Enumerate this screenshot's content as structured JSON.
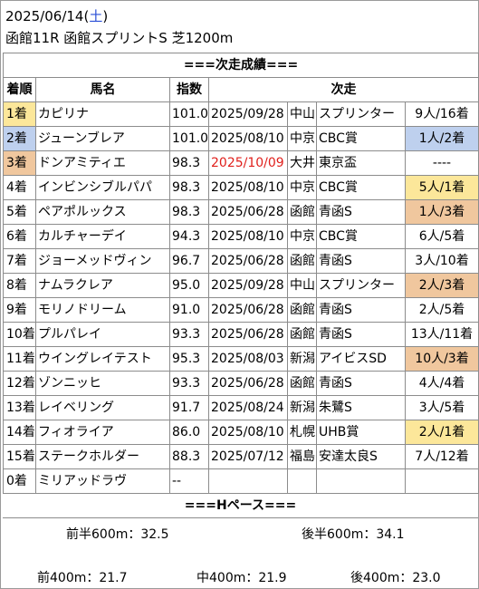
{
  "header": {
    "date": "2025/06/14",
    "weekday_open": "(",
    "weekday": "土",
    "weekday_close": ")",
    "race": "函館11R 函館スプリントS 芝1200m"
  },
  "section_next": "===次走成績===",
  "columns": {
    "rank": "着順",
    "horse": "馬名",
    "index": "指数",
    "next": "次走"
  },
  "rows": [
    {
      "rank": "1着",
      "horse": "カピリナ",
      "index": "101.0",
      "date": "2025/09/28",
      "venue": "中山",
      "race": "スプリンター",
      "result": "9人/16着"
    },
    {
      "rank": "2着",
      "horse": "ジューンブレア",
      "index": "101.0",
      "date": "2025/08/10",
      "venue": "中京",
      "race": "CBC賞",
      "result": "1人/2着"
    },
    {
      "rank": "3着",
      "horse": "ドンアミティエ",
      "index": "98.3",
      "date": "2025/10/09",
      "venue": "大井",
      "race": "東京盃",
      "result": "----"
    },
    {
      "rank": "4着",
      "horse": "インビンシブルパパ",
      "index": "98.3",
      "date": "2025/08/10",
      "venue": "中京",
      "race": "CBC賞",
      "result": "5人/1着"
    },
    {
      "rank": "5着",
      "horse": "ペアポルックス",
      "index": "98.3",
      "date": "2025/06/28",
      "venue": "函館",
      "race": "青函S",
      "result": "1人/3着"
    },
    {
      "rank": "6着",
      "horse": "カルチャーデイ",
      "index": "94.3",
      "date": "2025/08/10",
      "venue": "中京",
      "race": "CBC賞",
      "result": "6人/5着"
    },
    {
      "rank": "7着",
      "horse": "ジョーメッドヴィン",
      "index": "96.7",
      "date": "2025/06/28",
      "venue": "函館",
      "race": "青函S",
      "result": "3人/10着"
    },
    {
      "rank": "8着",
      "horse": "ナムラクレア",
      "index": "95.0",
      "date": "2025/09/28",
      "venue": "中山",
      "race": "スプリンター",
      "result": "2人/3着"
    },
    {
      "rank": "9着",
      "horse": "モリノドリーム",
      "index": "91.0",
      "date": "2025/06/28",
      "venue": "函館",
      "race": "青函S",
      "result": "2人/5着"
    },
    {
      "rank": "10着",
      "horse": "プルパレイ",
      "index": "93.3",
      "date": "2025/06/28",
      "venue": "函館",
      "race": "青函S",
      "result": "13人/11着"
    },
    {
      "rank": "11着",
      "horse": "ウイングレイテスト",
      "index": "95.3",
      "date": "2025/08/03",
      "venue": "新潟",
      "race": "アイビスSD",
      "result": "10人/3着"
    },
    {
      "rank": "12着",
      "horse": "ゾンニッヒ",
      "index": "93.3",
      "date": "2025/06/28",
      "venue": "函館",
      "race": "青函S",
      "result": "4人/4着"
    },
    {
      "rank": "13着",
      "horse": "レイベリング",
      "index": "91.7",
      "date": "2025/08/24",
      "venue": "新潟",
      "race": "朱鷺S",
      "result": "3人/5着"
    },
    {
      "rank": "14着",
      "horse": "フィオライア",
      "index": "86.0",
      "date": "2025/08/10",
      "venue": "札幌",
      "race": "UHB賞",
      "result": "2人/1着"
    },
    {
      "rank": "15着",
      "horse": "ステークホルダー",
      "index": "88.3",
      "date": "2025/07/12",
      "venue": "福島",
      "race": "安達太良S",
      "result": "7人/12着"
    },
    {
      "rank": "0着",
      "horse": "ミリアッドラヴ",
      "index": "--",
      "date": "",
      "venue": "",
      "race": "",
      "result": ""
    }
  ],
  "section_pace": "===Hペース===",
  "pace": {
    "first_half": "前半600m：32.5",
    "second_half": "後半600m：34.1",
    "front400": "前400m：21.7",
    "mid400": "中400m：21.9",
    "back400": "後400m：23.0"
  },
  "colors": {
    "gold": "#fce79a",
    "blue": "#bed0ee",
    "orange": "#f0c79e",
    "red_date": "#e0201c",
    "weekday_blue": "#2a4fd6"
  }
}
